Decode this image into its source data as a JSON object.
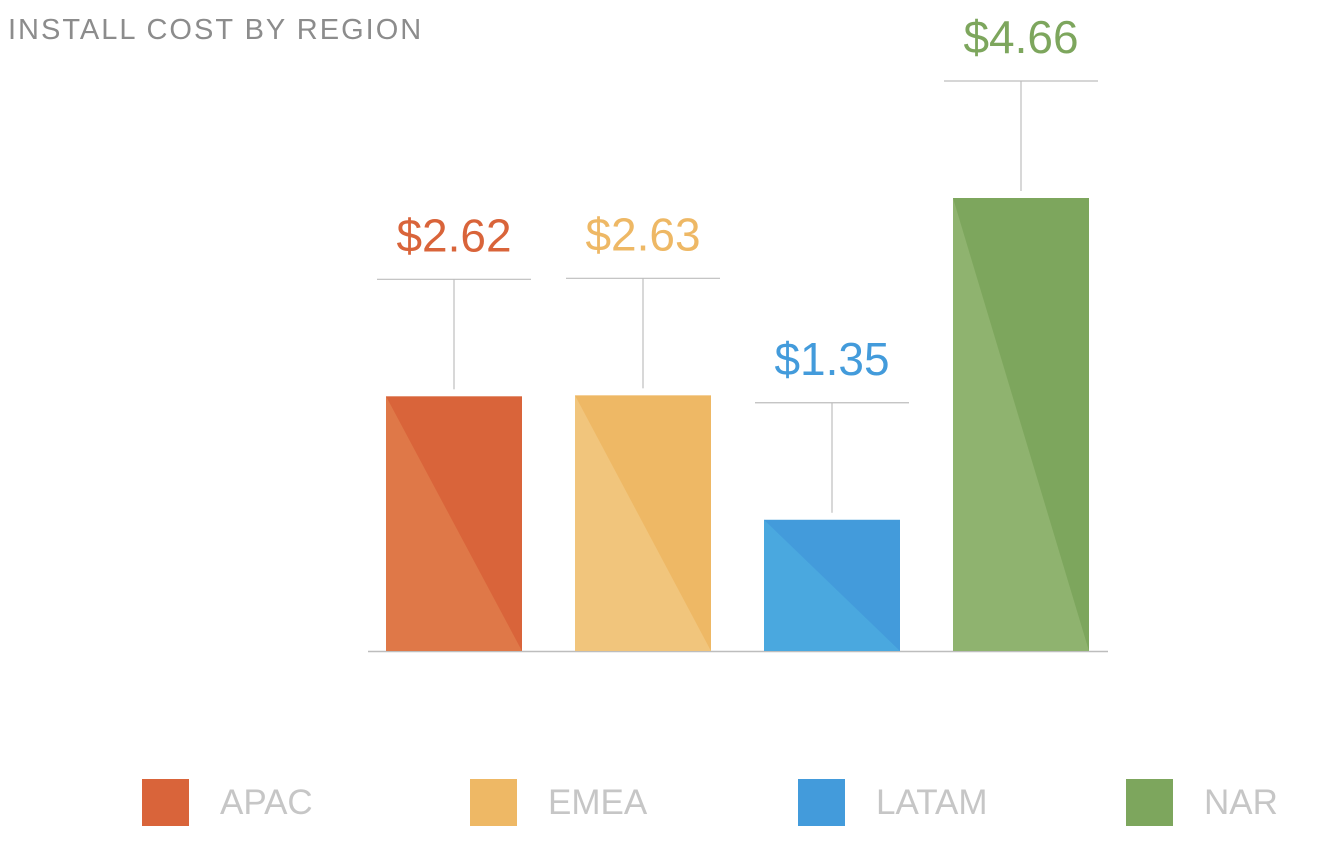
{
  "chart_data": {
    "type": "bar",
    "title": "INSTALL COST BY REGION",
    "categories": [
      "APAC",
      "EMEA",
      "LATAM",
      "NAR"
    ],
    "values": [
      2.62,
      2.63,
      1.35,
      4.66
    ],
    "value_labels": [
      "$2.62",
      "$2.63",
      "$1.35",
      "$4.66"
    ],
    "colors": [
      "#d9643a",
      "#eeb865",
      "#439bdb",
      "#7da65d"
    ],
    "highlight_colors": [
      "#df7848",
      "#f1c57c",
      "#4aa8df",
      "#8fb36f"
    ],
    "ylim": [
      0,
      4.66
    ],
    "legend_position": "bottom",
    "grid": false,
    "xlabel": "",
    "ylabel": ""
  }
}
